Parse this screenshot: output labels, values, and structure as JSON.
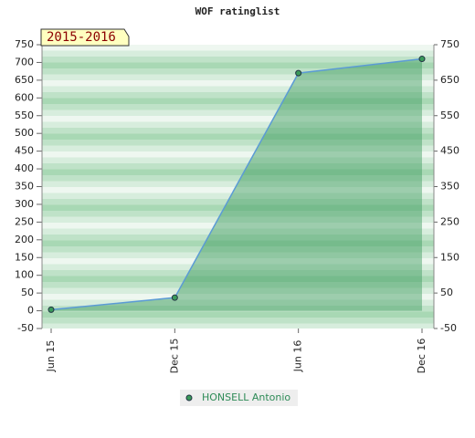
{
  "chart_data": {
    "type": "area",
    "title": "WOF ratinglist",
    "annotation": "2015-2016",
    "categories": [
      "Jun 15",
      "Dec 15",
      "Jun 16",
      "Dec 16"
    ],
    "series": [
      {
        "name": "HONSELL Antonio",
        "color": "#3a9a5a",
        "values": [
          3,
          37,
          670,
          710
        ]
      }
    ],
    "line_color": "#5b9bd5",
    "ylim": [
      -50,
      750
    ],
    "yticks": [
      -50,
      0,
      50,
      100,
      150,
      200,
      250,
      300,
      350,
      400,
      450,
      500,
      550,
      600,
      650,
      700,
      750
    ],
    "y2lim": [
      -50,
      750
    ],
    "y2ticks": [
      -50,
      50,
      150,
      250,
      350,
      450,
      550,
      650,
      750
    ]
  }
}
